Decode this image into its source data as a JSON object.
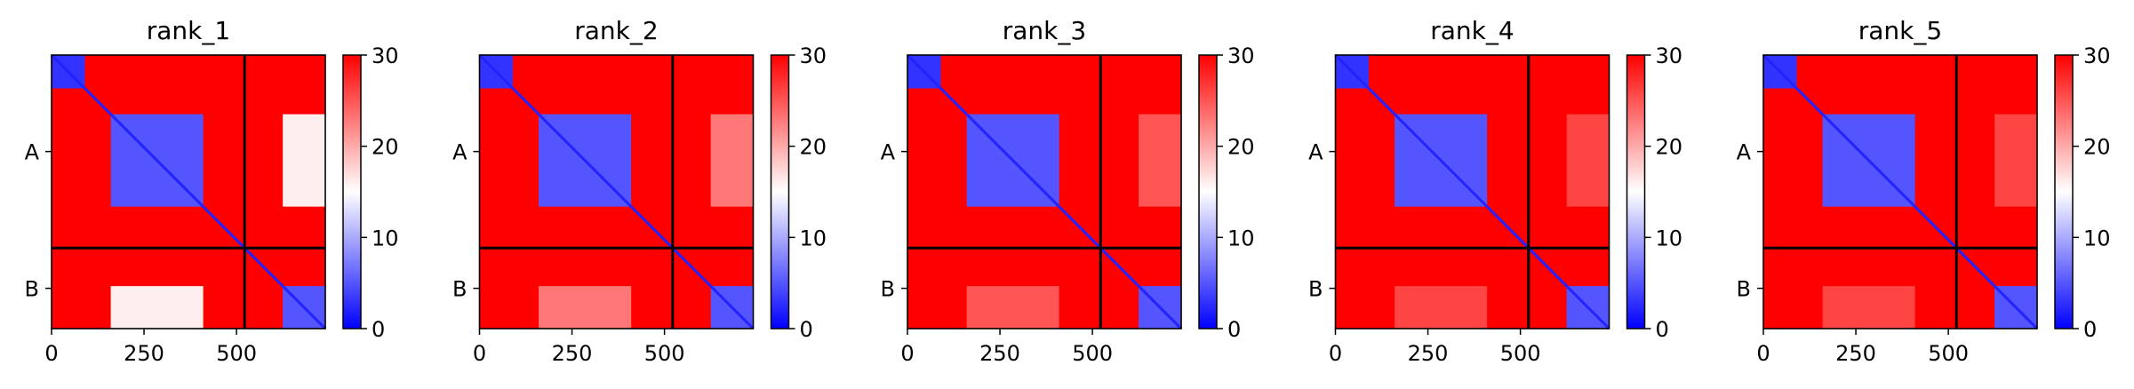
{
  "chart_data": [
    {
      "type": "heatmap",
      "title": "rank_1",
      "xticks": [
        0,
        250,
        500
      ],
      "xlim": [
        0,
        740
      ],
      "chain_labels": [
        "A",
        "B"
      ],
      "chain_boundary": 522,
      "colorbar": {
        "min": 0,
        "max": 30,
        "ticks": [
          0,
          10,
          20,
          30
        ],
        "colors": [
          "#0000ff",
          "#ffffff",
          "#ff0000"
        ]
      },
      "blocks": [
        {
          "x": [
            0,
            90
          ],
          "y": [
            0,
            90
          ],
          "value": 3
        },
        {
          "x": [
            160,
            410
          ],
          "y": [
            160,
            410
          ],
          "value": 5
        },
        {
          "x": [
            625,
            740
          ],
          "y": [
            625,
            740
          ],
          "value": 5
        },
        {
          "x": [
            625,
            740
          ],
          "y": [
            160,
            410
          ],
          "value": 16
        },
        {
          "x": [
            160,
            410
          ],
          "y": [
            625,
            740
          ],
          "value": 16
        }
      ]
    },
    {
      "type": "heatmap",
      "title": "rank_2",
      "xticks": [
        0,
        250,
        500
      ],
      "xlim": [
        0,
        740
      ],
      "chain_labels": [
        "A",
        "B"
      ],
      "chain_boundary": 522,
      "colorbar": {
        "min": 0,
        "max": 30,
        "ticks": [
          0,
          10,
          20,
          30
        ],
        "colors": [
          "#0000ff",
          "#ffffff",
          "#ff0000"
        ]
      },
      "blocks": [
        {
          "x": [
            0,
            90
          ],
          "y": [
            0,
            90
          ],
          "value": 3
        },
        {
          "x": [
            160,
            410
          ],
          "y": [
            160,
            410
          ],
          "value": 5
        },
        {
          "x": [
            625,
            740
          ],
          "y": [
            625,
            740
          ],
          "value": 5
        },
        {
          "x": [
            625,
            740
          ],
          "y": [
            160,
            410
          ],
          "value": 23
        },
        {
          "x": [
            160,
            410
          ],
          "y": [
            625,
            740
          ],
          "value": 23
        }
      ]
    },
    {
      "type": "heatmap",
      "title": "rank_3",
      "xticks": [
        0,
        250,
        500
      ],
      "xlim": [
        0,
        740
      ],
      "chain_labels": [
        "A",
        "B"
      ],
      "chain_boundary": 522,
      "colorbar": {
        "min": 0,
        "max": 30,
        "ticks": [
          0,
          10,
          20,
          30
        ],
        "colors": [
          "#0000ff",
          "#ffffff",
          "#ff0000"
        ]
      },
      "blocks": [
        {
          "x": [
            0,
            90
          ],
          "y": [
            0,
            90
          ],
          "value": 3
        },
        {
          "x": [
            160,
            410
          ],
          "y": [
            160,
            410
          ],
          "value": 5
        },
        {
          "x": [
            625,
            740
          ],
          "y": [
            625,
            740
          ],
          "value": 5
        },
        {
          "x": [
            625,
            740
          ],
          "y": [
            160,
            410
          ],
          "value": 25
        },
        {
          "x": [
            160,
            410
          ],
          "y": [
            625,
            740
          ],
          "value": 25
        }
      ]
    },
    {
      "type": "heatmap",
      "title": "rank_4",
      "xticks": [
        0,
        250,
        500
      ],
      "xlim": [
        0,
        740
      ],
      "chain_labels": [
        "A",
        "B"
      ],
      "chain_boundary": 522,
      "colorbar": {
        "min": 0,
        "max": 30,
        "ticks": [
          0,
          10,
          20,
          30
        ],
        "colors": [
          "#0000ff",
          "#ffffff",
          "#ff0000"
        ]
      },
      "blocks": [
        {
          "x": [
            0,
            90
          ],
          "y": [
            0,
            90
          ],
          "value": 3
        },
        {
          "x": [
            160,
            410
          ],
          "y": [
            160,
            410
          ],
          "value": 5
        },
        {
          "x": [
            625,
            740
          ],
          "y": [
            625,
            740
          ],
          "value": 5
        },
        {
          "x": [
            625,
            740
          ],
          "y": [
            160,
            410
          ],
          "value": 26
        },
        {
          "x": [
            160,
            410
          ],
          "y": [
            625,
            740
          ],
          "value": 26
        }
      ]
    },
    {
      "type": "heatmap",
      "title": "rank_5",
      "xticks": [
        0,
        250,
        500
      ],
      "xlim": [
        0,
        740
      ],
      "chain_labels": [
        "A",
        "B"
      ],
      "chain_boundary": 522,
      "colorbar": {
        "min": 0,
        "max": 30,
        "ticks": [
          0,
          10,
          20,
          30
        ],
        "colors": [
          "#0000ff",
          "#ffffff",
          "#ff0000"
        ]
      },
      "blocks": [
        {
          "x": [
            0,
            90
          ],
          "y": [
            0,
            90
          ],
          "value": 3
        },
        {
          "x": [
            160,
            410
          ],
          "y": [
            160,
            410
          ],
          "value": 5
        },
        {
          "x": [
            625,
            740
          ],
          "y": [
            625,
            740
          ],
          "value": 5
        },
        {
          "x": [
            625,
            740
          ],
          "y": [
            160,
            410
          ],
          "value": 26
        },
        {
          "x": [
            160,
            410
          ],
          "y": [
            625,
            740
          ],
          "value": 26
        }
      ]
    }
  ]
}
